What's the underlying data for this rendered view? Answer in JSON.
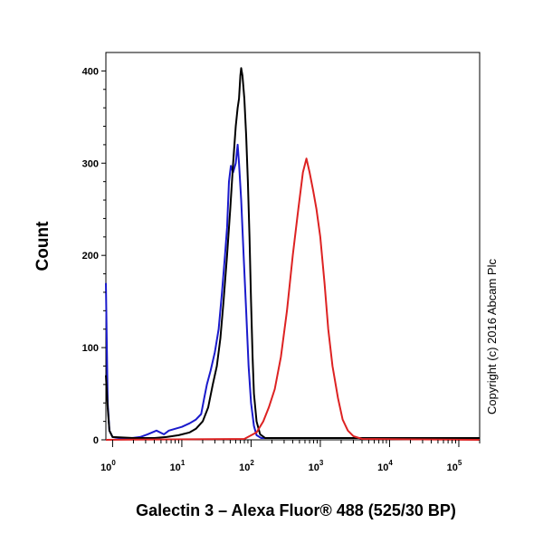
{
  "chart_data": {
    "type": "line",
    "title": "",
    "xlabel": "Galectin 3 – Alexa Fluor® 488  (525/30 BP)",
    "ylabel": "Count",
    "x_scale": "log",
    "xlim": [
      0.8,
      200000
    ],
    "ylim": [
      0,
      420
    ],
    "y_ticks": [
      0,
      100,
      200,
      300,
      400
    ],
    "x_ticks": [
      {
        "value": 1,
        "base": "10",
        "exp": "0"
      },
      {
        "value": 10,
        "base": "10",
        "exp": "1"
      },
      {
        "value": 100,
        "base": "10",
        "exp": "2"
      },
      {
        "value": 1000,
        "base": "10",
        "exp": "3"
      },
      {
        "value": 10000,
        "base": "10",
        "exp": "4"
      },
      {
        "value": 100000,
        "base": "10",
        "exp": "5"
      }
    ],
    "grid": false,
    "legend": "none",
    "annotation": "Copyright (c) 2016 Abcam Plc",
    "series": [
      {
        "color": "#1a1acc",
        "points": [
          [
            0.8,
            170
          ],
          [
            0.85,
            40
          ],
          [
            0.9,
            10
          ],
          [
            1.0,
            3
          ],
          [
            1.5,
            1
          ],
          [
            2.5,
            3
          ],
          [
            3.2,
            6
          ],
          [
            4.3,
            10
          ],
          [
            5.5,
            6
          ],
          [
            6.5,
            10
          ],
          [
            8,
            12
          ],
          [
            10,
            14
          ],
          [
            13,
            18
          ],
          [
            16,
            22
          ],
          [
            19,
            28
          ],
          [
            21,
            45
          ],
          [
            23,
            60
          ],
          [
            26,
            75
          ],
          [
            30,
            95
          ],
          [
            34,
            120
          ],
          [
            38,
            160
          ],
          [
            42,
            200
          ],
          [
            45,
            230
          ],
          [
            48,
            280
          ],
          [
            51,
            297
          ],
          [
            55,
            290
          ],
          [
            60,
            300
          ],
          [
            64,
            320
          ],
          [
            67,
            300
          ],
          [
            72,
            260
          ],
          [
            78,
            200
          ],
          [
            85,
            140
          ],
          [
            92,
            80
          ],
          [
            100,
            40
          ],
          [
            110,
            15
          ],
          [
            120,
            5
          ],
          [
            140,
            2
          ],
          [
            200000,
            2
          ]
        ]
      },
      {
        "color": "#000000",
        "points": [
          [
            0.8,
            70
          ],
          [
            0.85,
            35
          ],
          [
            0.9,
            10
          ],
          [
            1.0,
            3
          ],
          [
            2,
            2
          ],
          [
            4,
            2
          ],
          [
            6,
            3
          ],
          [
            9,
            5
          ],
          [
            13,
            8
          ],
          [
            16,
            12
          ],
          [
            20,
            20
          ],
          [
            24,
            35
          ],
          [
            28,
            60
          ],
          [
            32,
            80
          ],
          [
            36,
            110
          ],
          [
            40,
            150
          ],
          [
            45,
            200
          ],
          [
            50,
            250
          ],
          [
            55,
            300
          ],
          [
            60,
            340
          ],
          [
            64,
            360
          ],
          [
            67,
            370
          ],
          [
            70,
            395
          ],
          [
            72,
            403
          ],
          [
            75,
            395
          ],
          [
            80,
            370
          ],
          [
            85,
            330
          ],
          [
            90,
            280
          ],
          [
            95,
            220
          ],
          [
            100,
            150
          ],
          [
            105,
            90
          ],
          [
            110,
            50
          ],
          [
            120,
            20
          ],
          [
            135,
            6
          ],
          [
            160,
            2
          ],
          [
            200000,
            2
          ]
        ]
      },
      {
        "color": "#dd2222",
        "points": [
          [
            0.8,
            0
          ],
          [
            80,
            1
          ],
          [
            120,
            8
          ],
          [
            150,
            20
          ],
          [
            180,
            35
          ],
          [
            220,
            55
          ],
          [
            270,
            90
          ],
          [
            330,
            140
          ],
          [
            400,
            200
          ],
          [
            480,
            250
          ],
          [
            560,
            290
          ],
          [
            630,
            305
          ],
          [
            700,
            290
          ],
          [
            790,
            270
          ],
          [
            880,
            250
          ],
          [
            1000,
            220
          ],
          [
            1150,
            170
          ],
          [
            1300,
            120
          ],
          [
            1500,
            80
          ],
          [
            1800,
            45
          ],
          [
            2100,
            22
          ],
          [
            2500,
            10
          ],
          [
            3000,
            4
          ],
          [
            4000,
            1
          ],
          [
            200000,
            0
          ]
        ]
      }
    ]
  }
}
